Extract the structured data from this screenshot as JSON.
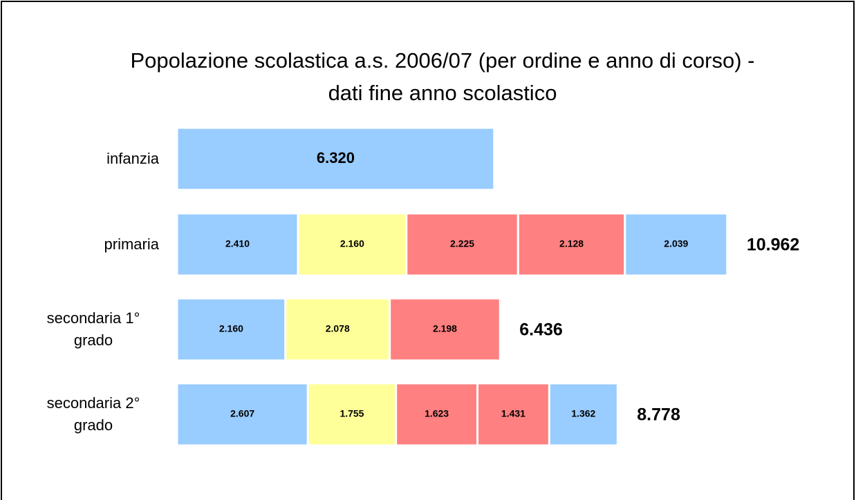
{
  "chart_data": {
    "type": "stacked-bar",
    "orientation": "horizontal",
    "title": "Popolazione scolastica a.s. 2006/07 (per ordine e anno di corso) - dati fine anno scolastico",
    "categories": [
      "infanzia",
      "primaria",
      "secondaria 1° grado",
      "secondaria 2° grado"
    ],
    "series": [
      {
        "color": "#99ccff",
        "values": [
          6320,
          2410,
          2160,
          2607
        ],
        "value_labels": [
          "6.320",
          "2.410",
          "2.160",
          "2.607"
        ]
      },
      {
        "color": "#ffff99",
        "values": [
          null,
          2160,
          2078,
          1755
        ],
        "value_labels": [
          null,
          "2.160",
          "2.078",
          "1.755"
        ]
      },
      {
        "color": "#ff8080",
        "values": [
          null,
          2225,
          2198,
          1623
        ],
        "value_labels": [
          null,
          "2.225",
          "2.198",
          "1.623"
        ]
      },
      {
        "color": "#ff8080",
        "values": [
          null,
          2128,
          null,
          1431
        ],
        "value_labels": [
          null,
          "2.128",
          null,
          "1.431"
        ]
      },
      {
        "color": "#99ccff",
        "values": [
          null,
          2039,
          null,
          1362
        ],
        "value_labels": [
          null,
          "2.039",
          null,
          "1.362"
        ]
      }
    ],
    "totals": {
      "values": [
        null,
        10962,
        6436,
        8778
      ],
      "value_labels": [
        null,
        "10.962",
        "6.436",
        "8.778"
      ]
    }
  }
}
